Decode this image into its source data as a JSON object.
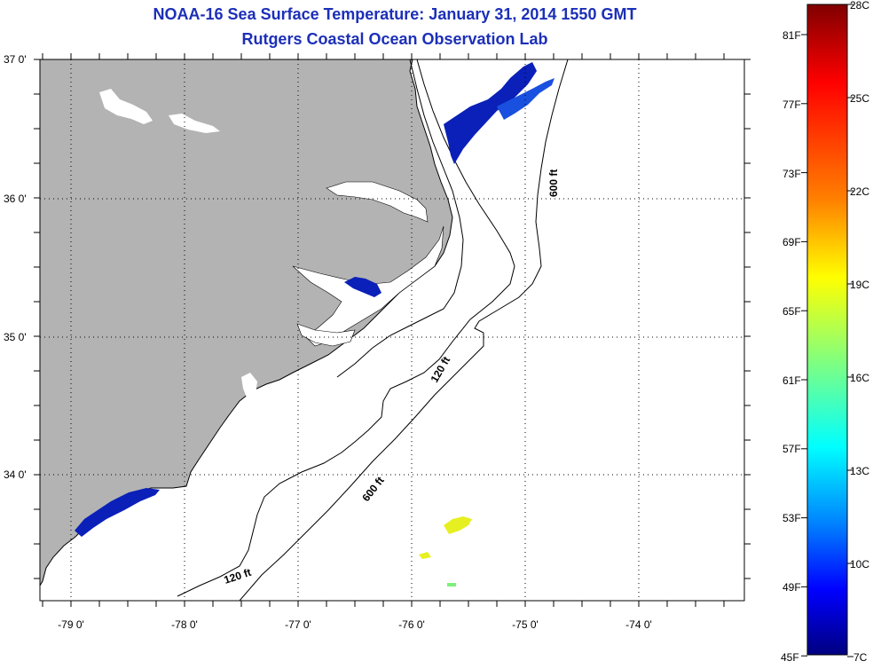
{
  "title_line1": "NOAA-16 Sea Surface Temperature:  January 31, 2014 1550 GMT",
  "title_line2": "Rutgers Coastal Ocean Observation Lab",
  "lat_labels": [
    "37 0'",
    "36 0'",
    "35 0'",
    "34 0'"
  ],
  "lon_labels": [
    "-79 0'",
    "-78 0'",
    "-77 0'",
    "-76 0'",
    "-75 0'",
    "-74 0'"
  ],
  "contour_labels": {
    "north_600": "600 ft",
    "mid_120": "120 ft",
    "south_600": "600 ft",
    "south_120": "120 ft"
  },
  "colorbar": {
    "fahrenheit": [
      "81F",
      "77F",
      "73F",
      "69F",
      "65F",
      "61F",
      "57F",
      "53F",
      "49F",
      "45F"
    ],
    "celsius": [
      "28C",
      "25C",
      "22C",
      "19C",
      "16C",
      "13C",
      "10C",
      "7C"
    ],
    "colors_top_to_bottom": [
      "#800000",
      "#ff0000",
      "#ff8000",
      "#ffff00",
      "#80ff80",
      "#00ffff",
      "#0080ff",
      "#0000ff",
      "#000080"
    ]
  },
  "colors": {
    "land": "#b3b3b3",
    "ocean": "#ffffff",
    "title": "#1c2fb8",
    "sst_cold": "#0a20b8",
    "sst_warm": "#e6f020"
  }
}
